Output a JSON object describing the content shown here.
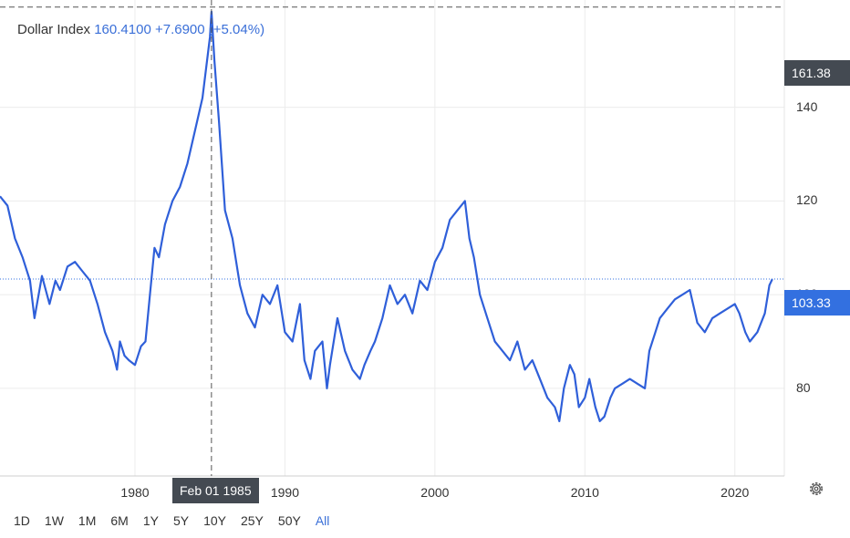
{
  "legend": {
    "name": "Dollar Index",
    "value": "160.4100",
    "change": "+7.6900",
    "change_pct": "(+5.04%)"
  },
  "crosshair": {
    "date_label": "Feb 01 1985",
    "price_label": "161.38"
  },
  "last_price_label": "103.33",
  "range_buttons": [
    "1D",
    "1W",
    "1M",
    "6M",
    "1Y",
    "5Y",
    "10Y",
    "25Y",
    "50Y",
    "All"
  ],
  "active_range": "All",
  "icons": {
    "settings": "gear-icon"
  },
  "colors": {
    "line": "#2f5fd9",
    "accent": "#3a6fd8",
    "crosshair_badge": "#444a52",
    "last_badge": "#3370e0"
  },
  "chart_data": {
    "type": "line",
    "title": "",
    "xlabel": "",
    "ylabel": "",
    "x_ticks": [
      1980,
      1990,
      2000,
      2010,
      2020
    ],
    "y_ticks": [
      80,
      100,
      120,
      140
    ],
    "xlim": [
      1971.0,
      2023.3
    ],
    "ylim": [
      61.3,
      162.9
    ],
    "grid": true,
    "series": [
      {
        "name": "Dollar Index",
        "x": [
          1971.0,
          1971.5,
          1972.0,
          1972.5,
          1973.0,
          1973.3,
          1973.8,
          1974.3,
          1974.7,
          1975.0,
          1975.5,
          1976.0,
          1976.5,
          1977.0,
          1977.5,
          1978.0,
          1978.5,
          1978.8,
          1979.0,
          1979.3,
          1979.6,
          1980.0,
          1980.4,
          1980.7,
          1981.0,
          1981.3,
          1981.6,
          1982.0,
          1982.5,
          1983.0,
          1983.5,
          1984.0,
          1984.5,
          1985.0,
          1985.1,
          1985.3,
          1985.6,
          1986.0,
          1986.5,
          1987.0,
          1987.5,
          1988.0,
          1988.5,
          1989.0,
          1989.5,
          1990.0,
          1990.5,
          1991.0,
          1991.3,
          1991.7,
          1992.0,
          1992.5,
          1992.8,
          1993.0,
          1993.5,
          1994.0,
          1994.5,
          1995.0,
          1995.3,
          1995.7,
          1996.0,
          1996.5,
          1997.0,
          1997.5,
          1998.0,
          1998.5,
          1999.0,
          1999.5,
          2000.0,
          2000.5,
          2001.0,
          2001.5,
          2002.0,
          2002.3,
          2002.6,
          2003.0,
          2003.5,
          2004.0,
          2004.5,
          2005.0,
          2005.5,
          2006.0,
          2006.5,
          2007.0,
          2007.5,
          2008.0,
          2008.3,
          2008.6,
          2009.0,
          2009.3,
          2009.6,
          2010.0,
          2010.3,
          2010.7,
          2011.0,
          2011.3,
          2011.7,
          2012.0,
          2012.5,
          2013.0,
          2013.5,
          2014.0,
          2014.3,
          2014.7,
          2015.0,
          2015.5,
          2016.0,
          2016.5,
          2017.0,
          2017.5,
          2018.0,
          2018.5,
          2019.0,
          2019.5,
          2020.0,
          2020.3,
          2020.7,
          2021.0,
          2021.5,
          2022.0,
          2022.3,
          2022.5
        ],
        "values": [
          121,
          119,
          112,
          108,
          103,
          95,
          104,
          98,
          103,
          101,
          106,
          107,
          105,
          103,
          98,
          92,
          88,
          84,
          90,
          87,
          86,
          85,
          89,
          90,
          100,
          110,
          108,
          115,
          120,
          123,
          128,
          135,
          142,
          155,
          160.4,
          150,
          137,
          118,
          112,
          102,
          96,
          93,
          100,
          98,
          102,
          92,
          90,
          98,
          86,
          82,
          88,
          90,
          80,
          85,
          95,
          88,
          84,
          82,
          85,
          88,
          90,
          95,
          102,
          98,
          100,
          96,
          103,
          101,
          107,
          110,
          116,
          118,
          120,
          112,
          108,
          100,
          95,
          90,
          88,
          86,
          90,
          84,
          86,
          82,
          78,
          76,
          73,
          80,
          85,
          83,
          76,
          78,
          82,
          76,
          73,
          74,
          78,
          80,
          81,
          82,
          81,
          80,
          88,
          92,
          95,
          97,
          99,
          100,
          101,
          94,
          92,
          95,
          96,
          97,
          98,
          96,
          92,
          90,
          92,
          96,
          102,
          103.3
        ]
      }
    ]
  }
}
